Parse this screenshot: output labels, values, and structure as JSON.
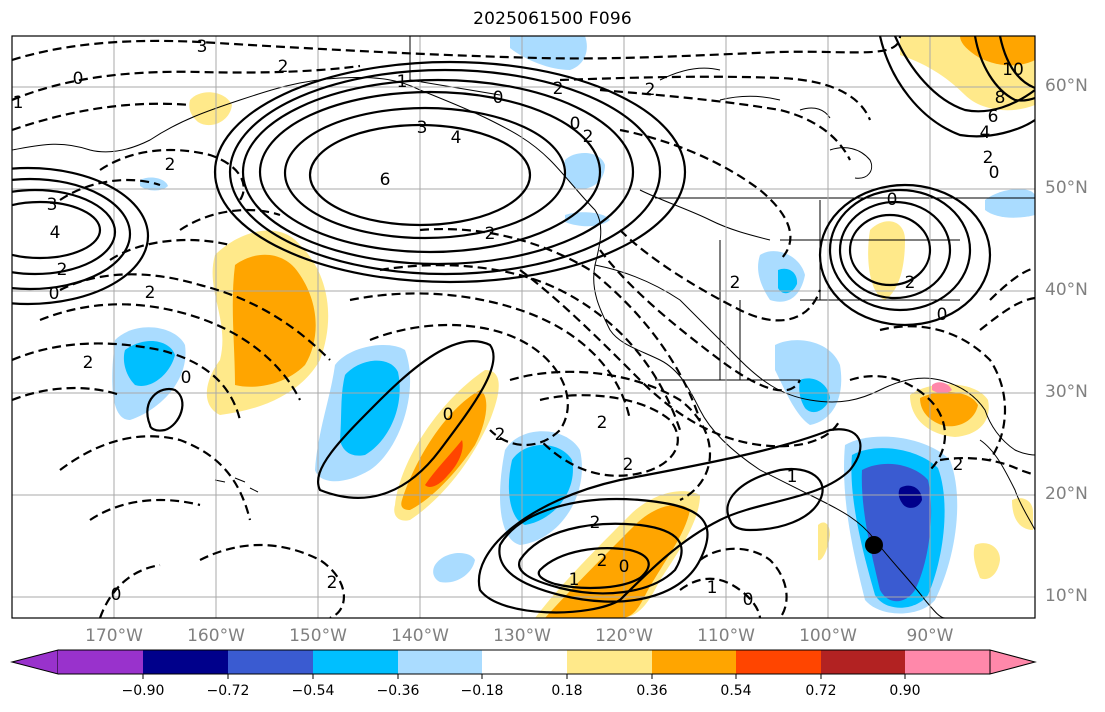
{
  "title": "2025061500 F096",
  "latitude_labels": [
    "60°N",
    "50°N",
    "40°N",
    "30°N",
    "20°N",
    "10°N"
  ],
  "longitude_labels": [
    "170°W",
    "160°W",
    "150°W",
    "140°W",
    "130°W",
    "120°W",
    "110°W",
    "100°W",
    "90°W"
  ],
  "colorbar": {
    "ticks": [
      "−0.90",
      "−0.72",
      "−0.54",
      "−0.36",
      "−0.18",
      "0.18",
      "0.36",
      "0.54",
      "0.72",
      "0.90"
    ],
    "colors": [
      "#9932cc",
      "#00008b",
      "#3a5bd1",
      "#00bfff",
      "#aadcff",
      "#ffffff",
      "#ffe98a",
      "#ffa500",
      "#ff4500",
      "#b22222",
      "#ff88aa"
    ]
  },
  "shading_colors": {
    "light_blue": "#aadcff",
    "blue": "#00bfff",
    "royal_blue": "#3a5bd1",
    "navy": "#00008b",
    "light_yellow": "#ffe98a",
    "orange": "#ffa500",
    "red_orange": "#ff4500"
  },
  "contour_labels": [
    {
      "text": "3"
    },
    {
      "text": "0"
    },
    {
      "text": "1"
    },
    {
      "text": "2"
    },
    {
      "text": "2"
    },
    {
      "text": "0"
    },
    {
      "text": "2"
    },
    {
      "text": "3"
    },
    {
      "text": "4"
    },
    {
      "text": "0"
    },
    {
      "text": "2"
    },
    {
      "text": "6"
    },
    {
      "text": "3"
    },
    {
      "text": "4"
    },
    {
      "text": "2"
    },
    {
      "text": "0"
    },
    {
      "text": "2"
    },
    {
      "text": "2"
    },
    {
      "text": "2"
    },
    {
      "text": "0"
    },
    {
      "text": "0"
    },
    {
      "text": "2"
    },
    {
      "text": "2"
    },
    {
      "text": "2"
    },
    {
      "text": "2"
    },
    {
      "text": "1"
    },
    {
      "text": "2"
    },
    {
      "text": "1"
    },
    {
      "text": "2"
    },
    {
      "text": "0"
    },
    {
      "text": "1"
    },
    {
      "text": "0"
    },
    {
      "text": "0"
    },
    {
      "text": "2"
    },
    {
      "text": "0"
    },
    {
      "text": "2"
    },
    {
      "text": "0"
    },
    {
      "text": "2"
    },
    {
      "text": "10"
    },
    {
      "text": "8"
    },
    {
      "text": "6"
    },
    {
      "text": "4"
    },
    {
      "text": "2"
    },
    {
      "text": "0"
    },
    {
      "text": "2"
    },
    {
      "text": "1"
    }
  ]
}
